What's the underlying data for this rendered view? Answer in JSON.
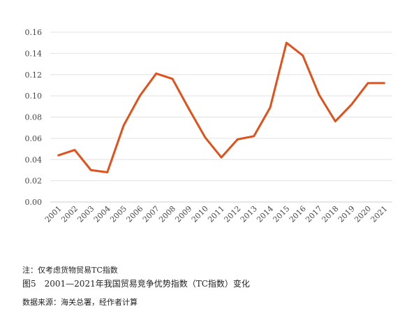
{
  "chart_data": {
    "type": "line",
    "title": "",
    "xlabel": "",
    "ylabel": "",
    "categories": [
      "2001",
      "2002",
      "2003",
      "2004",
      "2005",
      "2006",
      "2007",
      "2008",
      "2009",
      "2010",
      "2011",
      "2012",
      "2013",
      "2014",
      "2015",
      "2016",
      "2017",
      "2018",
      "2019",
      "2020",
      "2021"
    ],
    "series": [
      {
        "values": [
          0.044,
          0.049,
          0.03,
          0.028,
          0.072,
          0.1,
          0.121,
          0.116,
          0.088,
          0.061,
          0.042,
          0.059,
          0.062,
          0.089,
          0.15,
          0.138,
          0.101,
          0.076,
          0.092,
          0.112,
          0.112
        ],
        "color": "#e0521b"
      }
    ],
    "ylim": [
      0,
      0.16
    ],
    "yticks": [
      "0.00",
      "0.02",
      "0.04",
      "0.06",
      "0.08",
      "0.10",
      "0.12",
      "0.14",
      "0.16"
    ],
    "grid": "horizontal"
  },
  "note": "注：仅考虑货物贸易TC指数",
  "caption": "图5　2001—2021年我国贸易竞争优势指数（TC指数）变化",
  "source": "数据来源：海关总署，经作者计算"
}
